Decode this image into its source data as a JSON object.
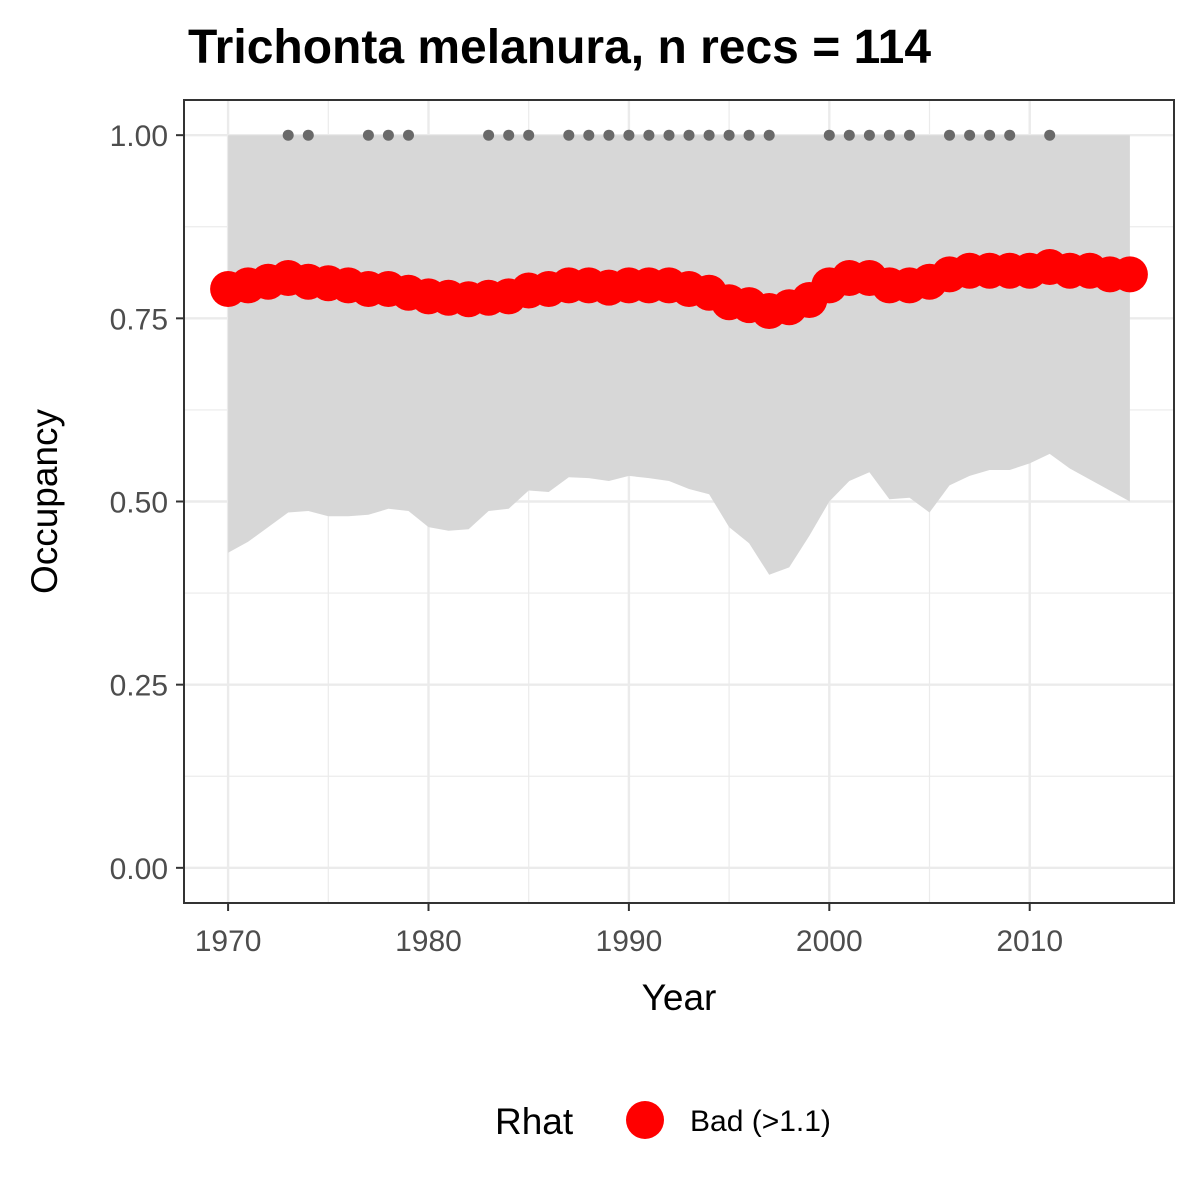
{
  "chart_data": {
    "type": "line",
    "title": "Trichonta melanura, n recs = 114",
    "xlabel": "Year",
    "ylabel": "Occupancy",
    "xlim": [
      1967.8,
      2017.2
    ],
    "ylim": [
      -0.048,
      1.048
    ],
    "x_ticks": [
      1970,
      1980,
      1990,
      2000,
      2010
    ],
    "x_tick_labels": [
      "1970",
      "1980",
      "1990",
      "2000",
      "2010"
    ],
    "y_ticks": [
      0,
      0.25,
      0.5,
      0.75,
      1.0
    ],
    "y_tick_labels": [
      "0.00",
      "0.25",
      "0.50",
      "0.75",
      "1.00"
    ],
    "grid": true,
    "legend": {
      "position": "bottom",
      "title": "Rhat",
      "entries": [
        {
          "label": "Bad (>1.1)",
          "color": "#ff0000"
        }
      ]
    },
    "colors": {
      "line_points": "#ff0000",
      "ribbon": "#d6d6d6",
      "record_points": "#696969",
      "panel_border": "#333333",
      "grid": "#ebebeb"
    },
    "series": [
      {
        "name": "Bad (>1.1)",
        "x": [
          1970,
          1971,
          1972,
          1973,
          1974,
          1975,
          1976,
          1977,
          1978,
          1979,
          1980,
          1981,
          1982,
          1983,
          1984,
          1985,
          1986,
          1987,
          1988,
          1989,
          1990,
          1991,
          1992,
          1993,
          1994,
          1995,
          1996,
          1997,
          1998,
          1999,
          2000,
          2001,
          2002,
          2003,
          2004,
          2005,
          2006,
          2007,
          2008,
          2009,
          2010,
          2011,
          2012,
          2013,
          2014,
          2015
        ],
        "values": [
          0.79,
          0.795,
          0.8,
          0.805,
          0.8,
          0.798,
          0.795,
          0.79,
          0.79,
          0.785,
          0.78,
          0.778,
          0.776,
          0.778,
          0.78,
          0.788,
          0.79,
          0.795,
          0.795,
          0.792,
          0.795,
          0.795,
          0.795,
          0.79,
          0.785,
          0.772,
          0.768,
          0.76,
          0.765,
          0.775,
          0.795,
          0.805,
          0.805,
          0.795,
          0.795,
          0.8,
          0.81,
          0.815,
          0.815,
          0.815,
          0.815,
          0.82,
          0.815,
          0.815,
          0.81,
          0.81
        ]
      }
    ],
    "ribbon": {
      "x": [
        1970,
        1971,
        1972,
        1973,
        1974,
        1975,
        1976,
        1977,
        1978,
        1979,
        1980,
        1981,
        1982,
        1983,
        1984,
        1985,
        1986,
        1987,
        1988,
        1989,
        1990,
        1991,
        1992,
        1993,
        1994,
        1995,
        1996,
        1997,
        1998,
        1999,
        2000,
        2001,
        2002,
        2003,
        2004,
        2005,
        2006,
        2007,
        2008,
        2009,
        2010,
        2011,
        2012,
        2013,
        2014,
        2015
      ],
      "lower": [
        0.43,
        0.445,
        0.465,
        0.485,
        0.487,
        0.48,
        0.48,
        0.482,
        0.49,
        0.487,
        0.465,
        0.46,
        0.462,
        0.487,
        0.49,
        0.515,
        0.513,
        0.533,
        0.532,
        0.528,
        0.535,
        0.532,
        0.528,
        0.517,
        0.51,
        0.465,
        0.443,
        0.4,
        0.41,
        0.453,
        0.5,
        0.528,
        0.54,
        0.503,
        0.505,
        0.485,
        0.522,
        0.535,
        0.543,
        0.543,
        0.552,
        0.565,
        0.545,
        0.53,
        0.515,
        0.5
      ],
      "upper": 1.0
    },
    "records": {
      "y": 1.0,
      "x": [
        1973,
        1974,
        1977,
        1978,
        1979,
        1983,
        1984,
        1985,
        1987,
        1988,
        1989,
        1990,
        1991,
        1992,
        1993,
        1994,
        1995,
        1996,
        1997,
        2000,
        2001,
        2002,
        2003,
        2004,
        2006,
        2007,
        2008,
        2009,
        2011
      ]
    }
  }
}
